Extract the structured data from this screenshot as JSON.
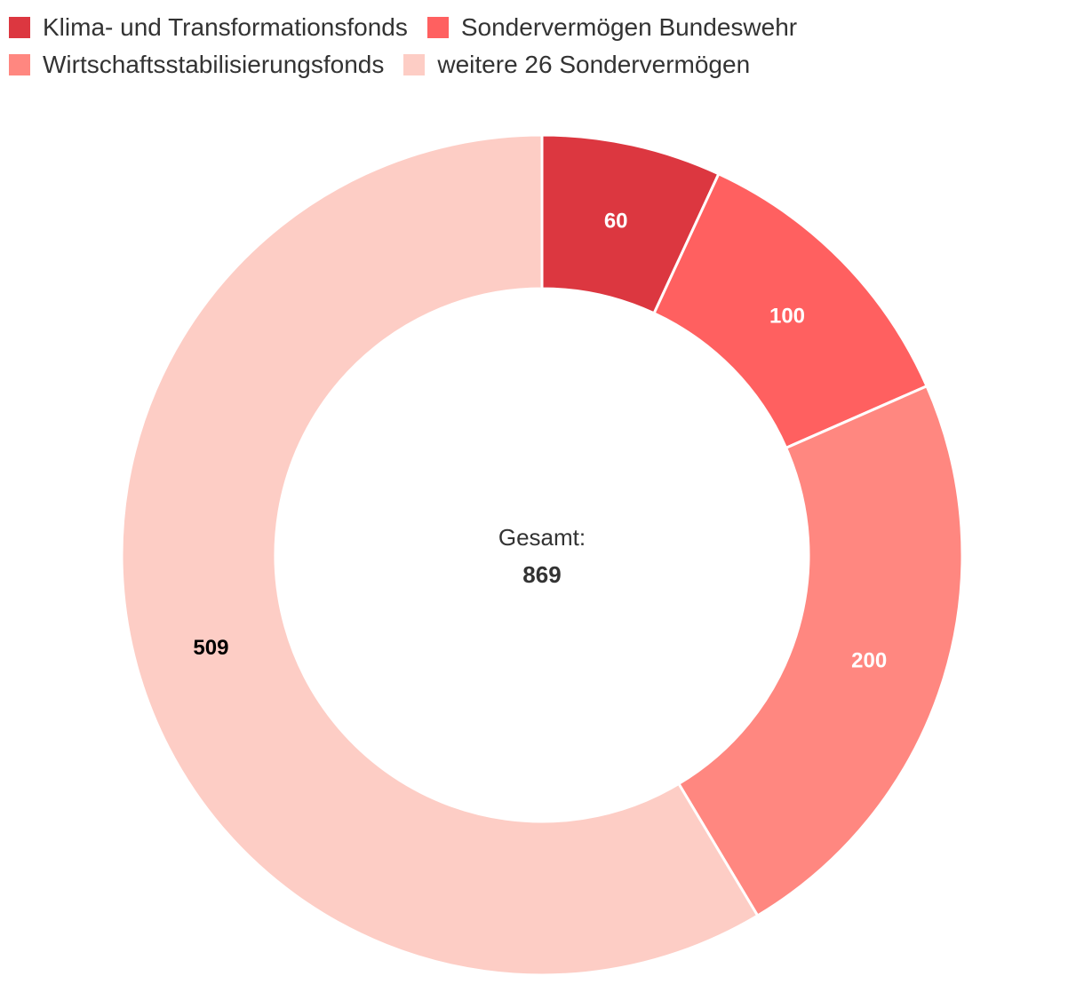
{
  "colors": {
    "klima": "#dc3740",
    "bundeswehr": "#ff6060",
    "wirtschaft": "#ff8780",
    "weitere": "#fdcdc5",
    "center_text": "#333333"
  },
  "legend": {
    "items": [
      {
        "label": "Klima- und Transformationsfonds",
        "color": "#dc3740"
      },
      {
        "label": "Sondervermögen Bundeswehr",
        "color": "#ff6060"
      },
      {
        "label": "Wirtschaftsstabilisierungsfonds",
        "color": "#ff8780"
      },
      {
        "label": "weitere 26 Sondervermögen",
        "color": "#fdcdc5"
      }
    ]
  },
  "center": {
    "label": "Gesamt:",
    "total": "869"
  },
  "chart_data": {
    "type": "pie",
    "variant": "donut",
    "categories": [
      "Klima- und Transformationsfonds",
      "Sondervermögen Bundeswehr",
      "Wirtschaftsstabilisierungsfonds",
      "weitere 26 Sondervermögen"
    ],
    "values": [
      60,
      100,
      200,
      509
    ],
    "value_labels": [
      "60",
      "100",
      "200",
      "509"
    ],
    "label_colors": [
      "#ffffff",
      "#ffffff",
      "#ffffff",
      "#000000"
    ],
    "colors": [
      "#dc3740",
      "#ff6060",
      "#ff8780",
      "#fdcdc5"
    ],
    "total": 869,
    "legend_position": "top-left"
  }
}
